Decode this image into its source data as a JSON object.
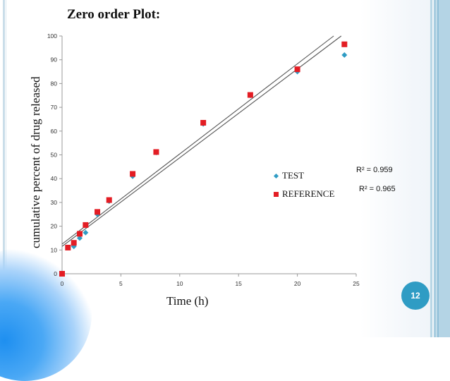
{
  "slide": {
    "title": "Zero order Plot:",
    "page_number": "12"
  },
  "chart_data": {
    "type": "scatter",
    "title": "Zero order Plot:",
    "xlabel": "Time (h)",
    "ylabel": "cumulative percent of drug released",
    "xlim": [
      0,
      25
    ],
    "ylim": [
      0,
      100
    ],
    "x_ticks": [
      "0",
      "5",
      "10",
      "15",
      "20",
      "25"
    ],
    "y_ticks": [
      "0",
      "10",
      "20",
      "30",
      "40",
      "50",
      "60",
      "70",
      "80",
      "90",
      "100"
    ],
    "grid": false,
    "legend_position": "right",
    "series": [
      {
        "name": "TEST",
        "marker": "diamond",
        "color": "#2f9cc4",
        "x": [
          0,
          0.5,
          1,
          1.5,
          2,
          3,
          4,
          6,
          8,
          12,
          16,
          20,
          24
        ],
        "y": [
          0,
          11,
          11.5,
          15,
          17.3,
          25,
          30.5,
          41,
          51,
          63,
          75,
          85,
          92
        ],
        "r_squared": "R² = 0.959",
        "trendline": {
          "slope": 3.73,
          "intercept": 11.5
        }
      },
      {
        "name": "REFERENCE",
        "marker": "square",
        "color": "#e31d24",
        "x": [
          0,
          0.5,
          1,
          1.5,
          2,
          3,
          4,
          6,
          8,
          12,
          16,
          20,
          24
        ],
        "y": [
          0,
          11,
          13,
          16.8,
          20.5,
          26,
          31,
          42,
          51.2,
          63.5,
          75.2,
          86,
          96.5
        ],
        "r_squared": "R² = 0.965",
        "trendline": {
          "slope": 3.79,
          "intercept": 12.5
        }
      }
    ]
  },
  "legend": {
    "test_label": "TEST",
    "reference_label": "REFERENCE",
    "test_r2": "R² = 0.959",
    "reference_r2": "R² = 0.965"
  }
}
